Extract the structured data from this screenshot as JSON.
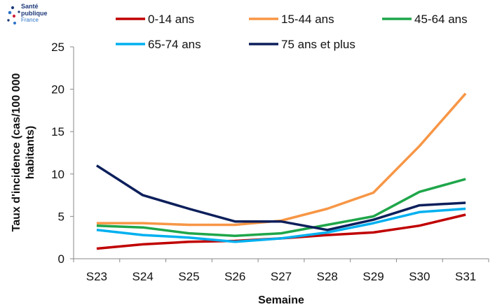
{
  "brand": {
    "line1": "Santé",
    "line2": "publique",
    "line3": "France",
    "colors": {
      "navy": "#1f3b7a",
      "red": "#d21f3c",
      "blue": "#2d73c8"
    }
  },
  "chart_data": {
    "type": "line",
    "title": "",
    "xlabel": "Semaine",
    "ylabel_lines": [
      "Taux d'incidence (cas/100 000",
      "habitants)"
    ],
    "categories": [
      "S23",
      "S24",
      "S25",
      "S26",
      "S27",
      "S28",
      "S29",
      "S30",
      "S31"
    ],
    "ylim": [
      0,
      25
    ],
    "yticks": [
      0,
      5,
      10,
      15,
      20,
      25
    ],
    "grid": false,
    "legend_position": "top",
    "series": [
      {
        "name": "0-14 ans",
        "color": "#c00000",
        "values": [
          1.2,
          1.7,
          2.0,
          2.1,
          2.4,
          2.8,
          3.1,
          3.9,
          5.2
        ]
      },
      {
        "name": "15-44 ans",
        "color": "#f79646",
        "values": [
          4.2,
          4.2,
          4.0,
          4.0,
          4.5,
          5.9,
          7.8,
          13.3,
          19.5
        ]
      },
      {
        "name": "45-64 ans",
        "color": "#1fa64a",
        "values": [
          3.9,
          3.7,
          3.0,
          2.7,
          3.0,
          4.0,
          5.0,
          7.9,
          9.4
        ]
      },
      {
        "name": "65-74 ans",
        "color": "#00b0f0",
        "values": [
          3.4,
          2.8,
          2.5,
          2.0,
          2.4,
          3.1,
          4.2,
          5.5,
          5.9
        ]
      },
      {
        "name": "75 ans et plus",
        "color": "#0c1f5b",
        "values": [
          11.0,
          7.5,
          5.9,
          4.4,
          4.4,
          3.4,
          4.6,
          6.3,
          6.6
        ]
      }
    ]
  }
}
